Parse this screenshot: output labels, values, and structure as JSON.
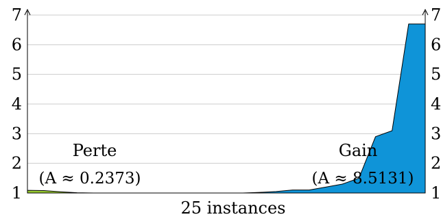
{
  "chart_data": {
    "type": "area",
    "xlabel": "25 instances",
    "ylim": [
      1,
      7
    ],
    "yticks": [
      1,
      2,
      3,
      4,
      5,
      6,
      7
    ],
    "x": [
      1,
      2,
      3,
      4,
      5,
      6,
      7,
      8,
      9,
      10,
      11,
      12,
      13,
      14,
      15,
      16,
      17,
      18,
      19,
      20,
      21,
      22,
      23,
      24,
      25
    ],
    "series": [
      {
        "label": "Perte",
        "area_label": "(A ≈ 0.2373)",
        "color": "#9acd32",
        "values": [
          1.09,
          1.08,
          1.04,
          1.01,
          1.0,
          1.0,
          1.0,
          1.0,
          1.0,
          1.0,
          1.0,
          1.0,
          1.0,
          1.0,
          1.0,
          1.0,
          1.0,
          1.0,
          1.0,
          1.0,
          1.0,
          1.0,
          1.0,
          1.0,
          1.0
        ]
      },
      {
        "label": "Gain",
        "area_label": "(A ≈ 8.5131)",
        "color": "#0f94d8",
        "values": [
          1.0,
          1.0,
          1.0,
          1.0,
          1.0,
          1.0,
          1.0,
          1.0,
          1.0,
          1.0,
          1.0,
          1.0,
          1.0,
          1.0,
          1.02,
          1.05,
          1.1,
          1.1,
          1.2,
          1.3,
          1.5,
          2.9,
          3.1,
          6.7,
          6.7
        ]
      }
    ],
    "grid": true,
    "axes": "both-sides-with-arrows"
  }
}
